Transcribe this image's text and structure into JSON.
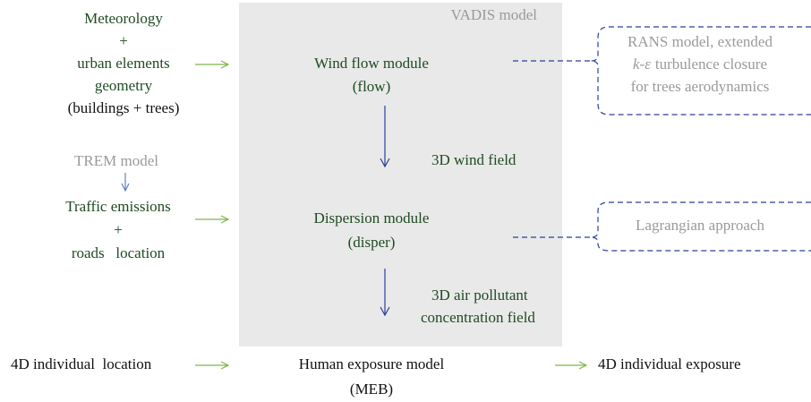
{
  "vadis_label": "VADIS model",
  "inputs": {
    "meteorology": [
      "Meteorology",
      "+",
      "urban elements",
      "geometry",
      "(buildings + trees)"
    ],
    "trem_label": "TREM model",
    "traffic": [
      "Traffic emissions",
      "+",
      "roads   location"
    ],
    "location": "4D individual  location"
  },
  "modules": {
    "wind": [
      "Wind flow module",
      "(flow)"
    ],
    "wind_output": "3D wind field",
    "dispersion": [
      "Dispersion module",
      "(disper)"
    ],
    "dispersion_output": [
      "3D air pollutant",
      "concentration field"
    ],
    "exposure": [
      "Human exposure model",
      "(MEB)"
    ],
    "exposure_output": "4D individual exposure"
  },
  "notes": {
    "rans": {
      "line1": "RANS model, extended",
      "line2_italic": "k-ε",
      "line2_rest": "turbulence closure",
      "line3": "for trees aerodynamics"
    },
    "lagrangian": "Lagrangian approach"
  }
}
